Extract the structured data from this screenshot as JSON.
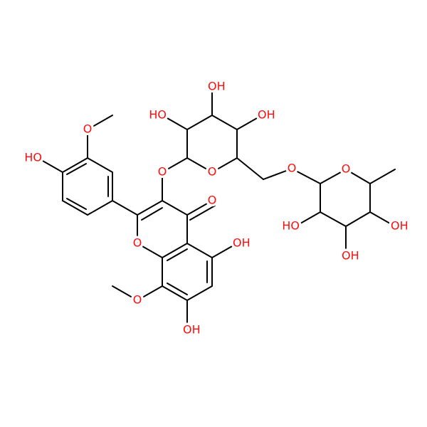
{
  "atoms": {
    "labels": [
      "O",
      "HO",
      "HO",
      "OH",
      "OH",
      "O",
      "O",
      "O",
      "O",
      "O",
      "O",
      "OH",
      "O",
      "OH",
      "HO",
      "OH",
      "OH"
    ]
  }
}
